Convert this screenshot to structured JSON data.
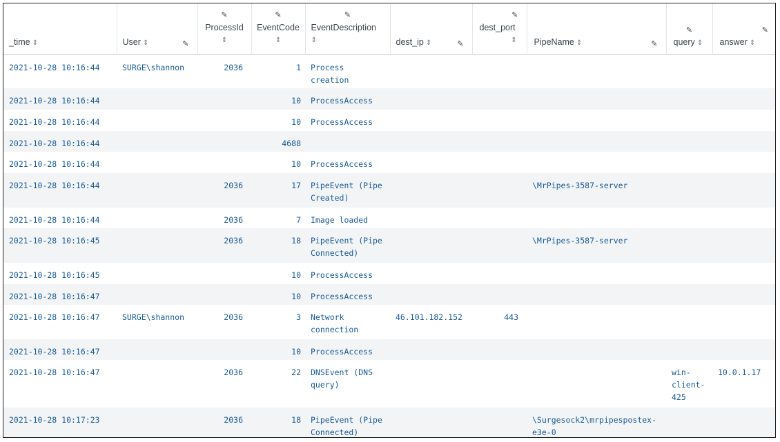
{
  "columns": [
    {
      "key": "time",
      "label": "_time"
    },
    {
      "key": "user",
      "label": "User"
    },
    {
      "key": "pid",
      "label": "ProcessId"
    },
    {
      "key": "code",
      "label": "EventCode"
    },
    {
      "key": "desc",
      "label": "EventDescription"
    },
    {
      "key": "ip",
      "label": "dest_ip"
    },
    {
      "key": "port",
      "label": "dest_port"
    },
    {
      "key": "pipe",
      "label": "PipeName"
    },
    {
      "key": "query",
      "label": "query"
    },
    {
      "key": "answer",
      "label": "answer"
    }
  ],
  "sort_glyph": "⇕",
  "edit_glyph": "✎",
  "rows": [
    {
      "time": "2021-10-28 10:16:44",
      "user": "SURGE\\shannon",
      "pid": "2036",
      "code": "1",
      "desc": "Process creation",
      "ip": "",
      "port": "",
      "pipe": "",
      "query": "",
      "answer": ""
    },
    {
      "time": "2021-10-28 10:16:44",
      "user": "",
      "pid": "",
      "code": "10",
      "desc": "ProcessAccess",
      "ip": "",
      "port": "",
      "pipe": "",
      "query": "",
      "answer": ""
    },
    {
      "time": "2021-10-28 10:16:44",
      "user": "",
      "pid": "",
      "code": "10",
      "desc": "ProcessAccess",
      "ip": "",
      "port": "",
      "pipe": "",
      "query": "",
      "answer": ""
    },
    {
      "time": "2021-10-28 10:16:44",
      "user": "",
      "pid": "",
      "code": "4688",
      "desc": "",
      "ip": "",
      "port": "",
      "pipe": "",
      "query": "",
      "answer": ""
    },
    {
      "time": "2021-10-28 10:16:44",
      "user": "",
      "pid": "",
      "code": "10",
      "desc": "ProcessAccess",
      "ip": "",
      "port": "",
      "pipe": "",
      "query": "",
      "answer": ""
    },
    {
      "time": "2021-10-28 10:16:44",
      "user": "",
      "pid": "2036",
      "code": "17",
      "desc": "PipeEvent (Pipe Created)",
      "ip": "",
      "port": "",
      "pipe": "\\MrPipes-3587-server",
      "query": "",
      "answer": ""
    },
    {
      "time": "2021-10-28 10:16:44",
      "user": "",
      "pid": "2036",
      "code": "7",
      "desc": "Image loaded",
      "ip": "",
      "port": "",
      "pipe": "",
      "query": "",
      "answer": ""
    },
    {
      "time": "2021-10-28 10:16:45",
      "user": "",
      "pid": "2036",
      "code": "18",
      "desc": "PipeEvent (Pipe Connected)",
      "ip": "",
      "port": "",
      "pipe": "\\MrPipes-3587-server",
      "query": "",
      "answer": ""
    },
    {
      "time": "2021-10-28 10:16:45",
      "user": "",
      "pid": "",
      "code": "10",
      "desc": "ProcessAccess",
      "ip": "",
      "port": "",
      "pipe": "",
      "query": "",
      "answer": ""
    },
    {
      "time": "2021-10-28 10:16:47",
      "user": "",
      "pid": "",
      "code": "10",
      "desc": "ProcessAccess",
      "ip": "",
      "port": "",
      "pipe": "",
      "query": "",
      "answer": ""
    },
    {
      "time": "2021-10-28 10:16:47",
      "user": "SURGE\\shannon",
      "pid": "2036",
      "code": "3",
      "desc": "Network connection",
      "ip": "46.101.182.152",
      "port": "443",
      "pipe": "",
      "query": "",
      "answer": ""
    },
    {
      "time": "2021-10-28 10:16:47",
      "user": "",
      "pid": "",
      "code": "10",
      "desc": "ProcessAccess",
      "ip": "",
      "port": "",
      "pipe": "",
      "query": "",
      "answer": ""
    },
    {
      "time": "2021-10-28 10:16:47",
      "user": "",
      "pid": "2036",
      "code": "22",
      "desc": "DNSEvent (DNS query)",
      "ip": "",
      "port": "",
      "pipe": "",
      "query": "win-client-425",
      "answer": "10.0.1.17"
    },
    {
      "time": "2021-10-28 10:17:23",
      "user": "",
      "pid": "2036",
      "code": "18",
      "desc": "PipeEvent (Pipe Connected)",
      "ip": "",
      "port": "",
      "pipe": "\\Surgesock2\\mrpipespostex-e3e-0",
      "query": "",
      "answer": ""
    }
  ]
}
